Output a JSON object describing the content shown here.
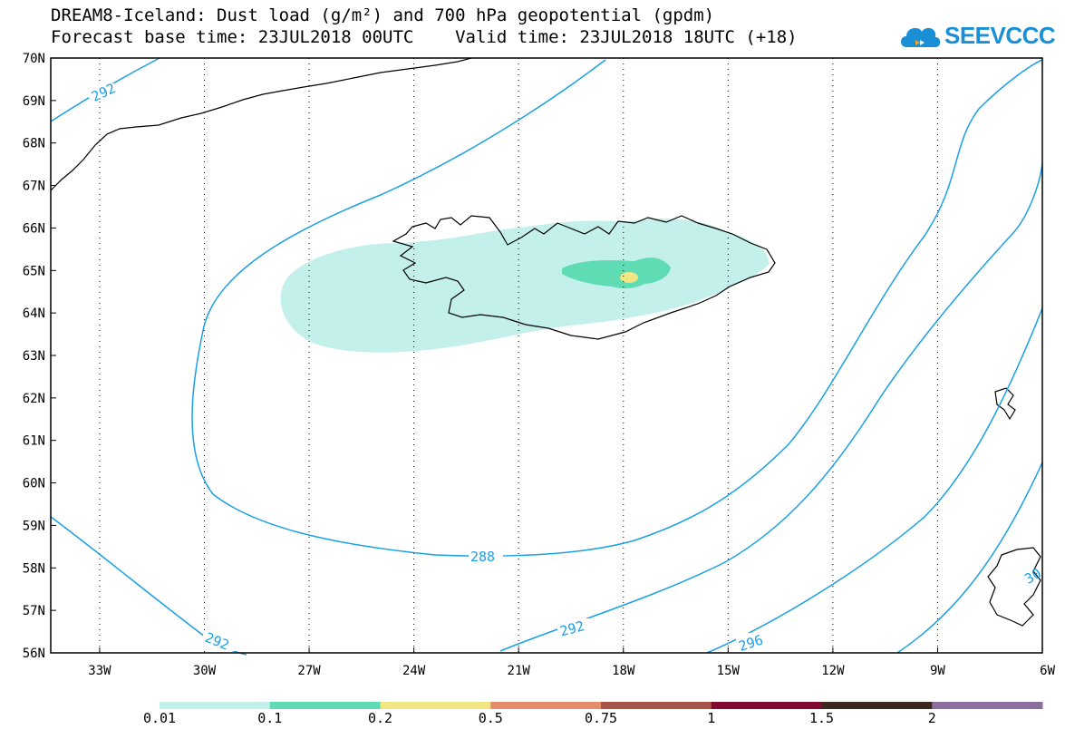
{
  "title": {
    "line1": "DREAM8-Iceland: Dust load (g/m²) and 700 hPa geopotential (gpdm)",
    "line2": "Forecast base time: 23JUL2018 00UTC    Valid time: 23JUL2018 18UTC (+18)"
  },
  "logo": {
    "text": "SEEVCCC",
    "icon": "cloud-icon"
  },
  "map": {
    "lon_range": [
      -34.4,
      -6
    ],
    "lat_range": [
      56,
      70
    ],
    "lon_ticks": [
      "33W",
      "30W",
      "27W",
      "24W",
      "21W",
      "18W",
      "15W",
      "12W",
      "9W",
      "6W"
    ],
    "lat_ticks": [
      "70N",
      "69N",
      "68N",
      "67N",
      "66N",
      "65N",
      "64N",
      "63N",
      "62N",
      "61N",
      "60N",
      "59N",
      "58N",
      "57N",
      "56N"
    ],
    "grid": "dotted",
    "contour_color": "#1aa0e6",
    "contours": [
      {
        "label": "292"
      },
      {
        "label": "288"
      },
      {
        "label": "292"
      },
      {
        "label": "292"
      },
      {
        "label": "296"
      },
      {
        "label": "30"
      }
    ]
  },
  "colorbar": {
    "colors": [
      "#c3f0ea",
      "#5fdcb4",
      "#f0e682",
      "#e48c6c",
      "#a85448",
      "#820a32",
      "#3c281c",
      "#8c6ea0"
    ],
    "labels": [
      "0.01",
      "0.1",
      "0.2",
      "0.5",
      "0.75",
      "1",
      "1.5",
      "2"
    ]
  }
}
